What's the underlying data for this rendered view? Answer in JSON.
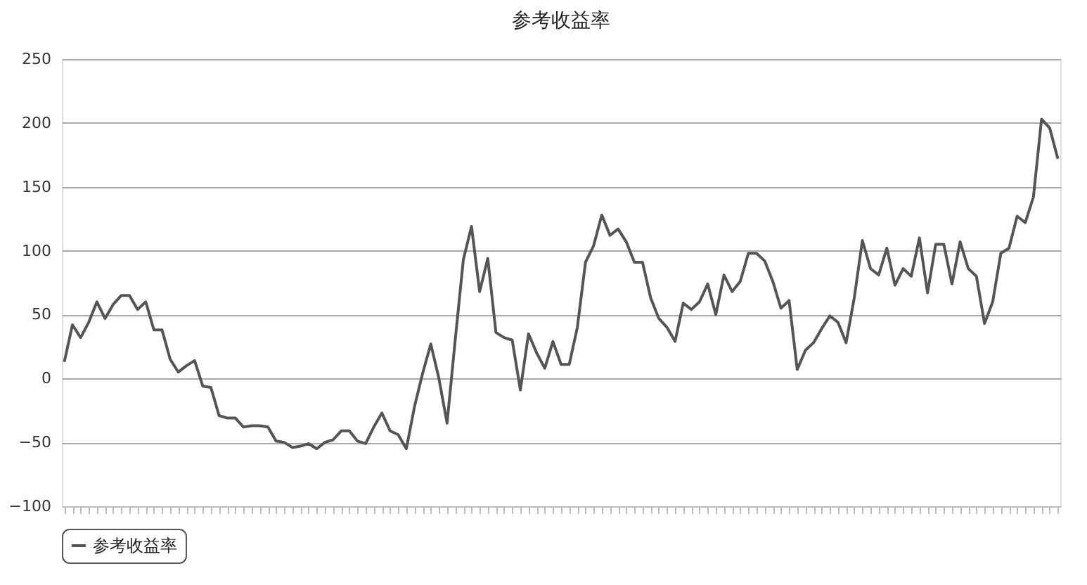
{
  "chart_data": {
    "type": "line",
    "title": "参考收益率",
    "categories": [
      null,
      null,
      null,
      null,
      null,
      null,
      null,
      null,
      null,
      null,
      null,
      null,
      null,
      null,
      null,
      null,
      null,
      null,
      null,
      null,
      null,
      null,
      null,
      null,
      null,
      null,
      null,
      null,
      null,
      null,
      null,
      null,
      null,
      null,
      null,
      null,
      null,
      null,
      null,
      null,
      null,
      null,
      null,
      null,
      null,
      null,
      null,
      null,
      null,
      null,
      null,
      null,
      null,
      null,
      null,
      null,
      null,
      null,
      null,
      null,
      null,
      null,
      null,
      null,
      null,
      null,
      null,
      null,
      null,
      null,
      null,
      null,
      null,
      null,
      null,
      null,
      null,
      null,
      null,
      null,
      null,
      null,
      null,
      null,
      null,
      null,
      null,
      null,
      null,
      null,
      null,
      null,
      null,
      null,
      null,
      null,
      null,
      null,
      null,
      null,
      null,
      null,
      null,
      null,
      null,
      null,
      null,
      null,
      null,
      null,
      null,
      null,
      null,
      null,
      null,
      null,
      null,
      null,
      null,
      null,
      null,
      null,
      null
    ],
    "series": [
      {
        "name": "参考收益率",
        "color": "#555555",
        "values": [
          13,
          42,
          32,
          44,
          60,
          47,
          58,
          65,
          65,
          54,
          60,
          38,
          38,
          15,
          5,
          10,
          14,
          -6,
          -7,
          -29,
          -31,
          -31,
          -38,
          -37,
          -37,
          -38,
          -49,
          -50,
          -54,
          -53,
          -51,
          -55,
          -50,
          -48,
          -41,
          -41,
          -49,
          -51,
          -38,
          -27,
          -41,
          -44,
          -55,
          -22,
          4,
          27,
          0,
          -35,
          30,
          93,
          119,
          68,
          94,
          36,
          32,
          30,
          -9,
          35,
          20,
          8,
          29,
          11,
          11,
          40,
          91,
          104,
          128,
          112,
          117,
          107,
          91,
          91,
          63,
          47,
          40,
          29,
          59,
          54,
          60,
          74,
          50,
          81,
          68,
          76,
          98,
          98,
          92,
          76,
          55,
          61,
          7,
          22,
          28,
          39,
          49,
          44,
          28,
          63,
          108,
          86,
          81,
          102,
          73,
          86,
          80,
          110,
          67,
          105,
          105,
          74,
          107,
          86,
          80,
          43,
          60,
          98,
          102,
          127,
          122,
          142,
          203,
          196,
          172
        ]
      }
    ],
    "ylim": [
      -100,
      250
    ],
    "yticks": [
      -100,
      -50,
      0,
      50,
      100,
      150,
      200,
      250
    ],
    "grid": "y",
    "legend": "bottom",
    "tick_labels": "y",
    "marker": "none",
    "line_style": "solid"
  }
}
